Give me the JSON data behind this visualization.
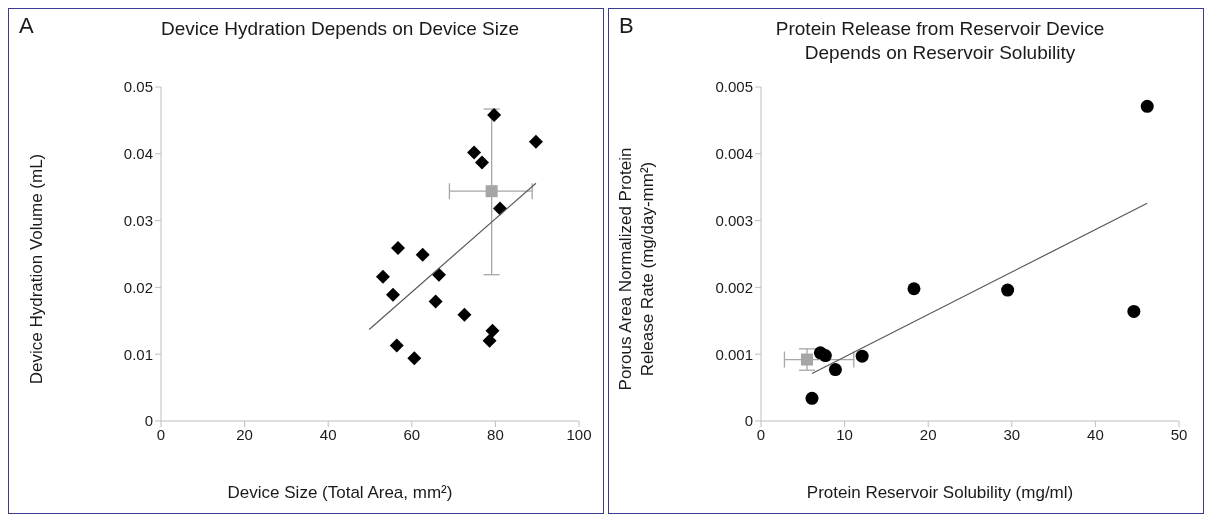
{
  "chart_data": [
    {
      "type": "scatter",
      "title": "Device Hydration Depends on Device Size",
      "xlabel": "Device Size (Total Area, mm²)",
      "ylabel": "Device Hydration Volume (mL)",
      "annotations": [
        "A"
      ],
      "xlim": [
        0,
        100
      ],
      "xticks": [
        0,
        20,
        40,
        60,
        80,
        100
      ],
      "ylim": [
        0,
        0.05
      ],
      "yticks": [
        0,
        0.01,
        0.02,
        0.03,
        0.04,
        0.05
      ],
      "series": [
        {
          "color": "#000000",
          "marker": "diamond",
          "x": [
            79.7,
            89.7,
            74.9,
            76.8,
            81.1,
            56.7,
            62.6,
            53.1,
            66.5,
            55.5,
            65.7,
            72.6,
            79.3,
            78.6,
            56.4,
            60.6
          ],
          "values": [
            0.0458,
            0.0418,
            0.0402,
            0.0387,
            0.0318,
            0.0259,
            0.0249,
            0.0216,
            0.0219,
            0.0189,
            0.0179,
            0.0159,
            0.0135,
            0.012,
            0.0113,
            0.0094
          ]
        },
        {
          "color": "#a6a6a6",
          "marker": "square",
          "x": [
            79.1
          ],
          "values": [
            0.0344
          ],
          "errors": [
            [
              0.0219,
              0.0467
            ]
          ],
          "xerrors": [
            [
              69.0,
              88.8
            ]
          ]
        },
        {
          "type": "line",
          "color": "#595959",
          "marker": "none",
          "x": [
            49.8,
            89.7
          ],
          "values": [
            0.0137,
            0.0356
          ]
        }
      ]
    },
    {
      "type": "scatter",
      "title": "Protein Release from Reservoir Device Depends on Reservoir Solubility",
      "xlabel": "Protein Reservoir Solubility (mg/ml)",
      "ylabel": "Porous Area Normalized Protein Release Rate (mg/day-mm²)",
      "annotations": [
        "B"
      ],
      "xlim": [
        0,
        50
      ],
      "xticks": [
        0,
        10,
        20,
        30,
        40,
        50
      ],
      "ylim": [
        0,
        0.005
      ],
      "yticks": [
        0,
        0.001,
        0.002,
        0.003,
        0.004,
        0.005
      ],
      "series": [
        {
          "color": "#000000",
          "marker": "circle",
          "x": [
            46.2,
            44.6,
            29.5,
            18.3,
            12.1,
            7.1,
            7.7,
            8.9,
            6.1
          ],
          "values": [
            0.00471,
            0.00164,
            0.00196,
            0.00198,
            0.00097,
            0.00102,
            0.00098,
            0.00077,
            0.00034
          ]
        },
        {
          "color": "#a6a6a6",
          "marker": "square",
          "x": [
            5.5
          ],
          "values": [
            0.00092
          ],
          "errors": [
            [
              0.00076,
              0.00108
            ]
          ],
          "xerrors": [
            [
              2.8,
              11.1
            ]
          ]
        },
        {
          "type": "line",
          "color": "#595959",
          "marker": "none",
          "x": [
            6.1,
            46.2
          ],
          "values": [
            0.00071,
            0.00326
          ]
        }
      ]
    }
  ]
}
